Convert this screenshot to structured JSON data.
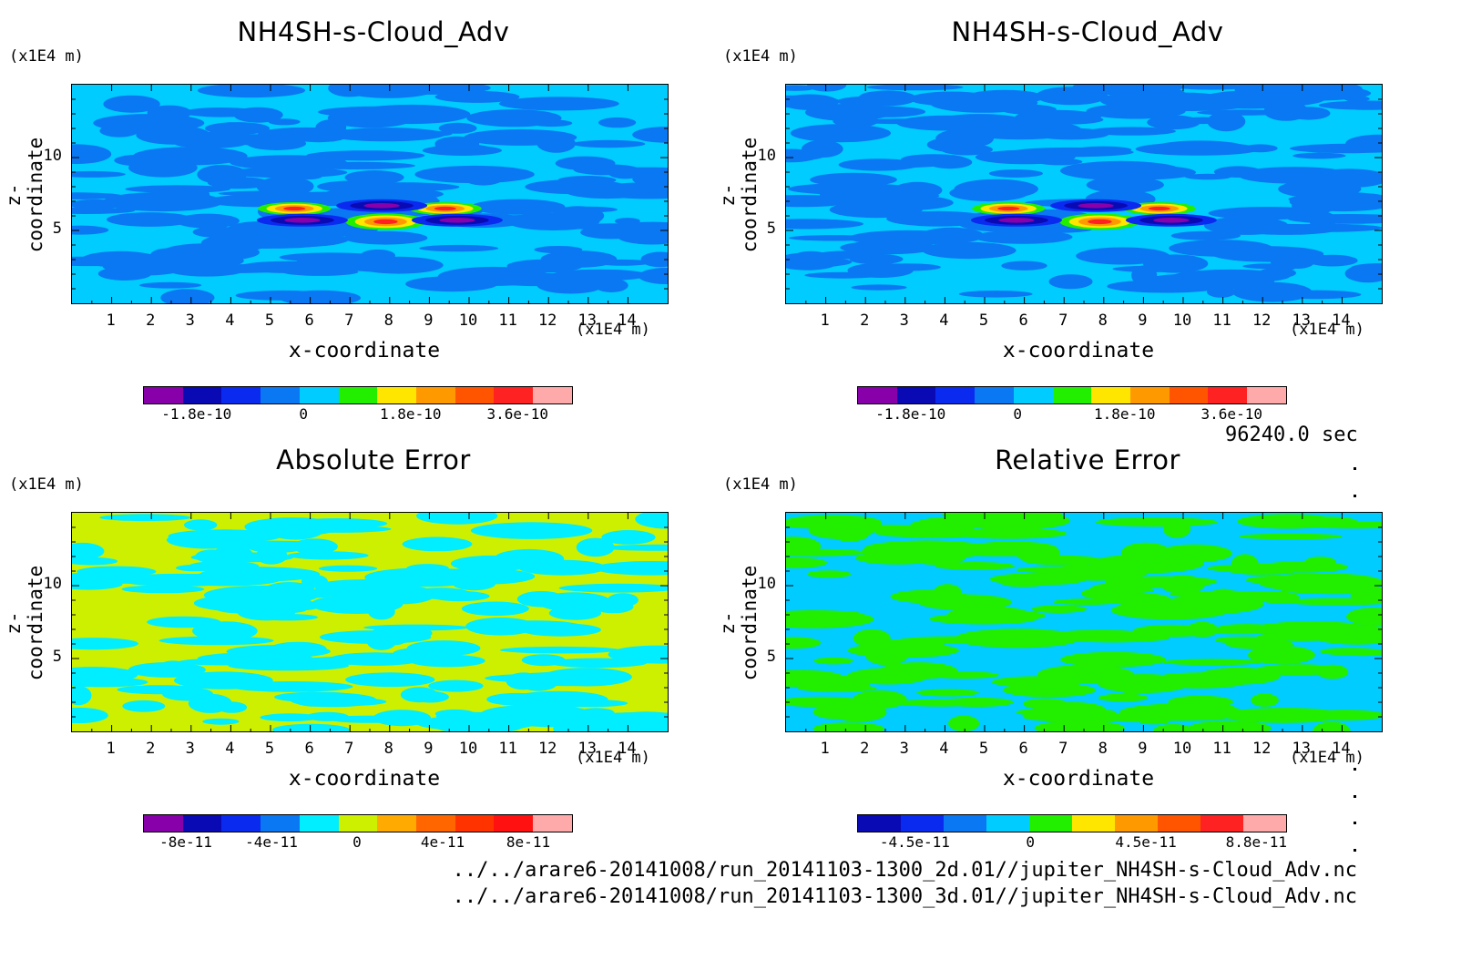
{
  "timestamp": "96240.0 sec",
  "files": [
    "../../arare6-20141008/run_20141103-1300_2d.01//jupiter_NH4SH-s-Cloud_Adv.nc",
    "../../arare6-20141008/run_20141103-1300_3d.01//jupiter_NH4SH-s-Cloud_Adv.nc"
  ],
  "chart_data": [
    {
      "type": "heatmap",
      "title": "NH4SH-s-Cloud_Adv",
      "xlabel": "x-coordinate",
      "ylabel": "z-coordinate",
      "x_unit": "(x1E4 m)",
      "y_unit": "(x1E4 m)",
      "xlim": [
        0,
        15
      ],
      "ylim": [
        0,
        15
      ],
      "x_ticks": [
        "1",
        "2",
        "3",
        "4",
        "5",
        "6",
        "7",
        "8",
        "9",
        "10",
        "11",
        "12",
        "13",
        "14"
      ],
      "y_ticks": [
        "5",
        "10"
      ],
      "background_color": "#00ccff",
      "pattern_color": "#0a78f2",
      "features": [
        {
          "x": 5.6,
          "y": 6.5,
          "value": 2e-10
        },
        {
          "x": 9.4,
          "y": 6.5,
          "value": 2e-10
        },
        {
          "x": 7.9,
          "y": 5.6,
          "value": 3.6e-10
        },
        {
          "x": 5.8,
          "y": 5.7,
          "value": -1.8e-10
        },
        {
          "x": 9.7,
          "y": 5.7,
          "value": -1.8e-10
        },
        {
          "x": 7.8,
          "y": 6.7,
          "value": -1.2e-10
        }
      ],
      "colorbar": {
        "colors": [
          "#8800aa",
          "#0a0ab4",
          "#0a2af0",
          "#0a78f2",
          "#00ccff",
          "#22ee00",
          "#ffe600",
          "#ff9900",
          "#ff5500",
          "#ff2222",
          "#ffaaaa"
        ],
        "tick_labels": [
          "-1.8e-10",
          "0",
          "1.8e-10",
          "3.6e-10"
        ],
        "tick_values": [
          -1.8e-10,
          0,
          1.8e-10,
          3.6e-10
        ]
      }
    },
    {
      "type": "heatmap",
      "title": "NH4SH-s-Cloud_Adv",
      "xlabel": "x-coordinate",
      "ylabel": "z-coordinate",
      "x_unit": "(x1E4 m)",
      "y_unit": "(x1E4 m)",
      "xlim": [
        0,
        15
      ],
      "ylim": [
        0,
        15
      ],
      "x_ticks": [
        "1",
        "2",
        "3",
        "4",
        "5",
        "6",
        "7",
        "8",
        "9",
        "10",
        "11",
        "12",
        "13",
        "14"
      ],
      "y_ticks": [
        "5",
        "10"
      ],
      "background_color": "#00ccff",
      "pattern_color": "#0a78f2",
      "features": [
        {
          "x": 5.6,
          "y": 6.5,
          "value": 2e-10
        },
        {
          "x": 9.4,
          "y": 6.5,
          "value": 2e-10
        },
        {
          "x": 7.9,
          "y": 5.6,
          "value": 3.6e-10
        },
        {
          "x": 5.8,
          "y": 5.7,
          "value": -1.8e-10
        },
        {
          "x": 9.7,
          "y": 5.7,
          "value": -1.8e-10
        },
        {
          "x": 7.8,
          "y": 6.7,
          "value": -1.2e-10
        }
      ],
      "colorbar": {
        "colors": [
          "#8800aa",
          "#0a0ab4",
          "#0a2af0",
          "#0a78f2",
          "#00ccff",
          "#22ee00",
          "#ffe600",
          "#ff9900",
          "#ff5500",
          "#ff2222",
          "#ffaaaa"
        ],
        "tick_labels": [
          "-1.8e-10",
          "0",
          "1.8e-10",
          "3.6e-10"
        ],
        "tick_values": [
          -1.8e-10,
          0,
          1.8e-10,
          3.6e-10
        ]
      }
    },
    {
      "type": "heatmap",
      "title": "Absolute Error",
      "xlabel": "x-coordinate",
      "ylabel": "z-coordinate",
      "x_unit": "(x1E4 m)",
      "y_unit": "(x1E4 m)",
      "xlim": [
        0,
        15
      ],
      "ylim": [
        0,
        15
      ],
      "x_ticks": [
        "1",
        "2",
        "3",
        "4",
        "5",
        "6",
        "7",
        "8",
        "9",
        "10",
        "11",
        "12",
        "13",
        "14"
      ],
      "y_ticks": [
        "5",
        "10"
      ],
      "background_color": "#ccf000",
      "pattern_color": "#00eeff",
      "features": [],
      "colorbar": {
        "colors": [
          "#8800aa",
          "#0a0ab4",
          "#0a2af0",
          "#0a78f2",
          "#00eeff",
          "#ccf000",
          "#ffaa00",
          "#ff6600",
          "#ff3300",
          "#ff1111",
          "#ffaaaa"
        ],
        "tick_labels": [
          "-8e-11",
          "-4e-11",
          "0",
          "4e-11",
          "8e-11"
        ],
        "tick_values": [
          -8e-11,
          -4e-11,
          0,
          4e-11,
          8e-11
        ]
      }
    },
    {
      "type": "heatmap",
      "title": "Relative Error",
      "xlabel": "x-coordinate",
      "ylabel": "z-coordinate",
      "x_unit": "(x1E4 m)",
      "y_unit": "(x1E4 m)",
      "xlim": [
        0,
        15
      ],
      "ylim": [
        0,
        15
      ],
      "x_ticks": [
        "1",
        "2",
        "3",
        "4",
        "5",
        "6",
        "7",
        "8",
        "9",
        "10",
        "11",
        "12",
        "13",
        "14"
      ],
      "y_ticks": [
        "5",
        "10"
      ],
      "background_color": "#00ccff",
      "pattern_color": "#22ee00",
      "features": [],
      "colorbar": {
        "colors": [
          "#0a0ab4",
          "#0a2af0",
          "#0a78f2",
          "#00ccff",
          "#22ee00",
          "#ffe600",
          "#ff9900",
          "#ff5500",
          "#ff2222",
          "#ffaaaa"
        ],
        "tick_labels": [
          "-4.5e-11",
          "0",
          "4.5e-11",
          "8.8e-11"
        ],
        "tick_values": [
          -4.5e-11,
          0,
          4.5e-11,
          8.8e-11
        ]
      }
    }
  ]
}
